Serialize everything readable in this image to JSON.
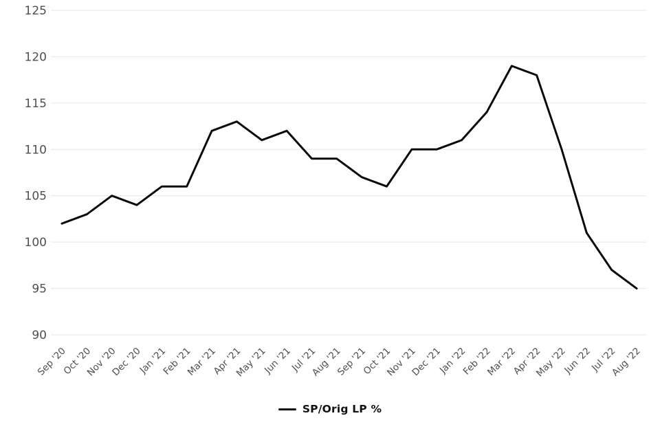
{
  "chart_data": {
    "type": "line",
    "title": "",
    "categories": [
      "Sep '20",
      "Oct '20",
      "Nov '20",
      "Dec '20",
      "Jan '21",
      "Feb '21",
      "Mar '21",
      "Apr '21",
      "May '21",
      "Jun '21",
      "Jul '21",
      "Aug '21",
      "Sep '21",
      "Oct '21",
      "Nov '21",
      "Dec '21",
      "Jan '22",
      "Feb '22",
      "Mar '22",
      "Apr '22",
      "May '22",
      "Jun '22",
      "Jul '22",
      "Aug '22"
    ],
    "series": [
      {
        "name": "SP/Orig LP %",
        "color": "#0a0a0a",
        "values": [
          102,
          103,
          105,
          104,
          106,
          106,
          112,
          113,
          111,
          112,
          109,
          109,
          107,
          106,
          110,
          110,
          111,
          114,
          119,
          118,
          110,
          101,
          97,
          95
        ]
      }
    ],
    "xlabel": "",
    "ylabel": "",
    "ylim": [
      90,
      125
    ],
    "yticks": [
      90,
      95,
      100,
      105,
      110,
      115,
      120,
      125
    ],
    "grid": "horizontal",
    "grid_color": "#e6e6e6",
    "axis_label_color": "#4f4f4f",
    "background": "#ffffff",
    "legend_position": "bottom"
  }
}
